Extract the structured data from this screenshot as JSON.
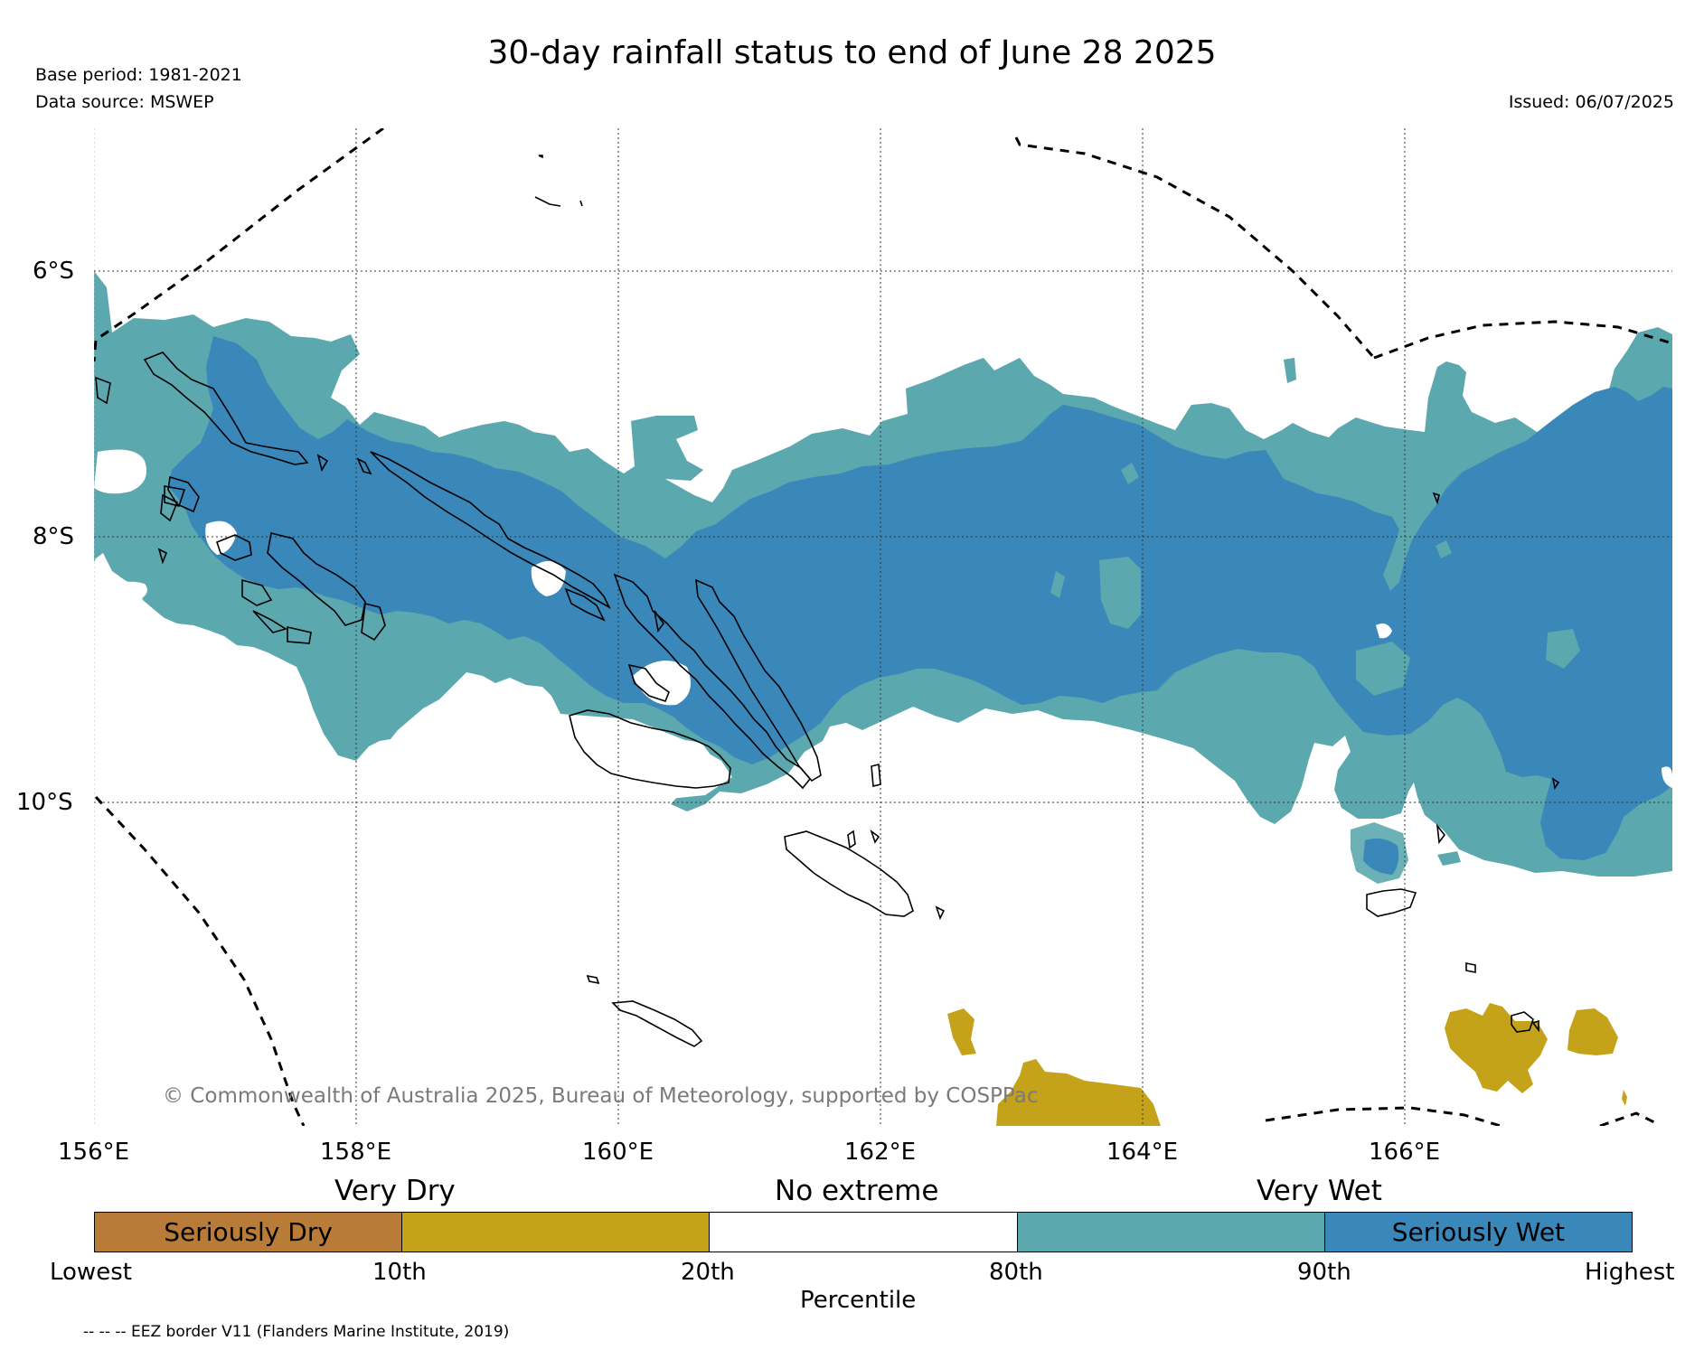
{
  "header": {
    "title": "30-day rainfall status to end of June 28 2025",
    "base_period": "Base period: 1981-2021",
    "data_source": "Data source: MSWEP",
    "issued": "Issued: 06/07/2025"
  },
  "map": {
    "lat_labels": [
      "6°S",
      "8°S",
      "10°S"
    ],
    "lon_labels": [
      "156°E",
      "158°E",
      "160°E",
      "162°E",
      "164°E",
      "166°E"
    ],
    "copyright": "© Commonwealth of Australia 2025, Bureau of Meteorology, supported by COSPPac",
    "colors": {
      "seriously_wet": "#3a87b9",
      "very_wet": "#5ba8ae",
      "very_dry": "#c4a31a",
      "seriously_dry": "#b87c38",
      "coastline": "#000000",
      "eez": "#000000"
    }
  },
  "legend": {
    "headings": [
      "Very Dry",
      "No extreme",
      "Very Wet"
    ],
    "segments": [
      {
        "label": "Seriously Dry",
        "color": "#b87c38"
      },
      {
        "label": "",
        "color": "#c4a31a"
      },
      {
        "label": "",
        "color": "#ffffff"
      },
      {
        "label": "",
        "color": "#5ba8ae"
      },
      {
        "label": "Seriously Wet",
        "color": "#3a87b9"
      }
    ],
    "ticks": [
      "Lowest",
      "10th",
      "20th",
      "80th",
      "90th",
      "Highest"
    ],
    "axis_label": "Percentile",
    "eez_note": "-- -- -- EEZ border V11 (Flanders Marine Institute, 2019)"
  }
}
